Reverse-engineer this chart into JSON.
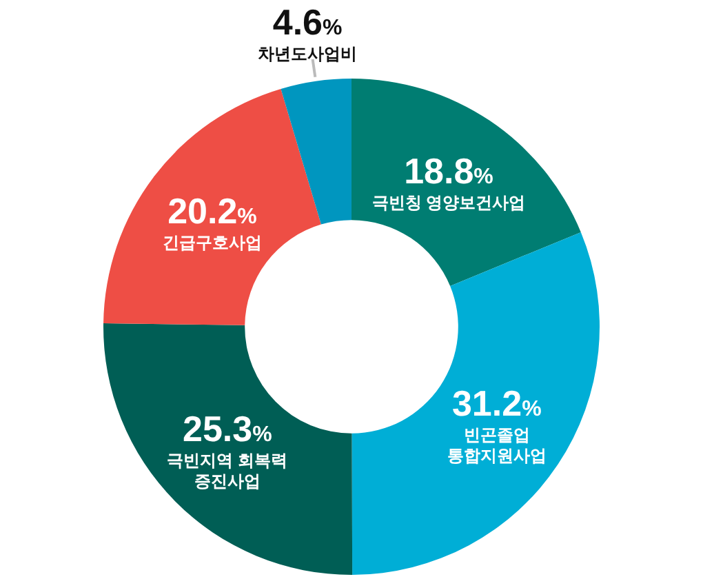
{
  "chart_data": {
    "type": "donut",
    "categories": [
      "극빈칭 영양보건사업",
      "빈곤졸업\n통합지원사업",
      "극빈지역 회복력\n증진사업",
      "긴급구호사업",
      "차년도사업비"
    ],
    "values": [
      18.8,
      31.2,
      25.3,
      20.2,
      4.6
    ],
    "value_labels": [
      "18.8%",
      "31.2%",
      "25.3%",
      "20.2%",
      "4.6%"
    ],
    "colors": [
      "#007d72",
      "#00aed6",
      "#005e55",
      "#ee4e45",
      "#0096bf"
    ]
  }
}
